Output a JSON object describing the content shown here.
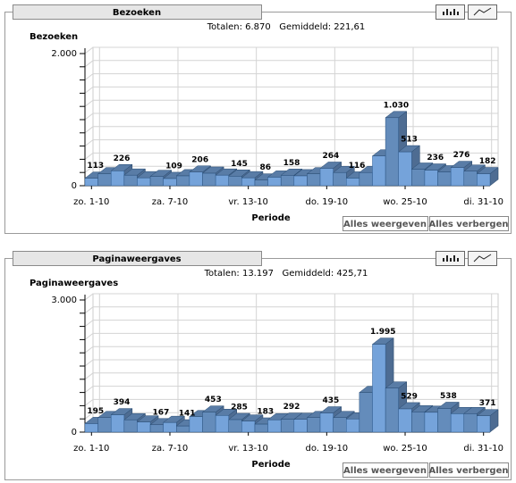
{
  "chart_data": [
    {
      "type": "bar",
      "panel_title": "Bezoeken",
      "summary": "Totalen: 6.870   Gemiddeld: 221,61",
      "ylabel": "Bezoeken",
      "xlabel": "Periode",
      "categories": [
        "zo. 1-10",
        null,
        null,
        null,
        null,
        null,
        "za. 7-10",
        null,
        null,
        null,
        null,
        null,
        "vr. 13-10",
        null,
        null,
        null,
        null,
        null,
        "do. 19-10",
        null,
        null,
        null,
        null,
        null,
        "wo. 25-10",
        null,
        null,
        null,
        null,
        null,
        "di. 31-10"
      ],
      "values": [
        113,
        180,
        226,
        160,
        120,
        140,
        109,
        150,
        206,
        190,
        160,
        145,
        120,
        86,
        130,
        158,
        150,
        180,
        264,
        200,
        116,
        200,
        450,
        1030,
        513,
        250,
        236,
        210,
        276,
        220,
        182
      ],
      "value_labels": [
        "113",
        null,
        "226",
        null,
        null,
        null,
        "109",
        null,
        "206",
        null,
        null,
        "145",
        null,
        "86",
        null,
        "158",
        null,
        null,
        "264",
        null,
        "116",
        null,
        null,
        "1.030",
        "513",
        null,
        "236",
        null,
        "276",
        null,
        "182"
      ],
      "color": "#6f9bd0",
      "ylim": [
        0,
        2000
      ],
      "yticks": [
        0,
        {
          "value": 2000,
          "label": "2.000"
        }
      ],
      "minor_yticks": [
        200,
        400,
        600,
        800,
        1000,
        1200,
        1400,
        1600,
        1800
      ],
      "buttons": [
        "Alles weergeven",
        "Alles verbergen"
      ]
    },
    {
      "type": "bar",
      "panel_title": "Paginaweergaves",
      "summary": "Totalen: 13.197   Gemiddeld: 425,71",
      "ylabel": "Paginaweergaves",
      "xlabel": "Periode",
      "categories": [
        "zo. 1-10",
        null,
        null,
        null,
        null,
        null,
        "za. 7-10",
        null,
        null,
        null,
        null,
        null,
        "vr. 13-10",
        null,
        null,
        null,
        null,
        null,
        "do. 19-10",
        null,
        null,
        null,
        null,
        null,
        "wo. 25-10",
        null,
        null,
        null,
        null,
        null,
        "di. 31-10"
      ],
      "values": [
        195,
        330,
        394,
        280,
        230,
        167,
        220,
        141,
        350,
        453,
        380,
        285,
        250,
        183,
        280,
        292,
        289,
        330,
        435,
        330,
        300,
        900,
        1995,
        1000,
        529,
        460,
        450,
        538,
        420,
        420,
        371
      ],
      "value_labels": [
        "195",
        null,
        "394",
        null,
        null,
        "167",
        null,
        "141",
        null,
        "453",
        null,
        "285",
        null,
        "183",
        null,
        "292",
        null,
        null,
        "435",
        null,
        null,
        null,
        "1.995",
        null,
        "529",
        null,
        null,
        "538",
        null,
        null,
        "371"
      ],
      "color": "#6f9bd0",
      "ylim": [
        0,
        3000
      ],
      "yticks": [
        0,
        {
          "value": 3000,
          "label": "3.000"
        }
      ],
      "minor_yticks": [
        300,
        600,
        900,
        1200,
        1500,
        1800,
        2100,
        2400,
        2700
      ],
      "buttons": [
        "Alles weergeven",
        "Alles verbergen"
      ]
    }
  ]
}
